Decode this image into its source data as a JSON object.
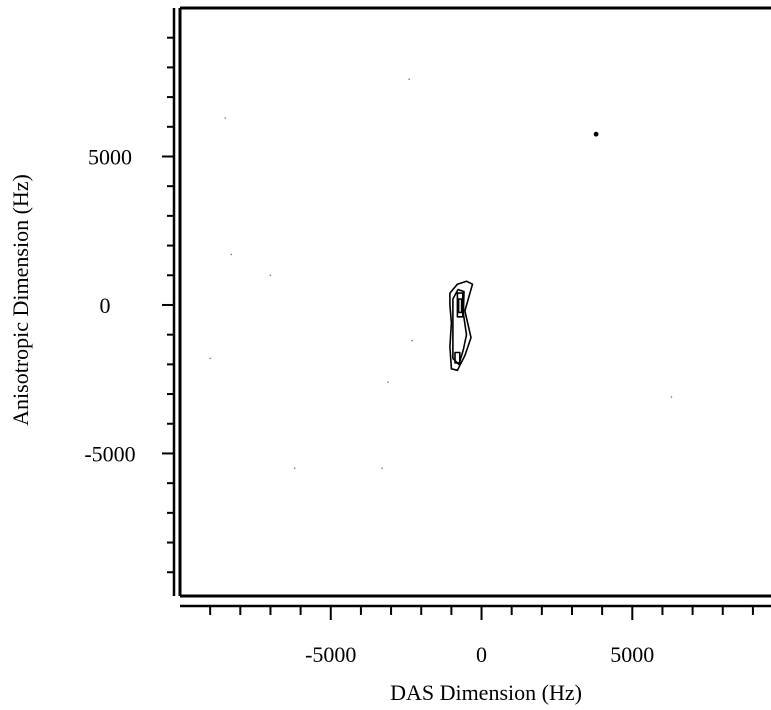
{
  "chart_data": {
    "type": "contour",
    "title": "",
    "xlabel": "DAS Dimension (Hz)",
    "ylabel": "Anisotropic Dimension (Hz)",
    "xlim": [
      -10000,
      9600
    ],
    "ylim": [
      -9800,
      10000
    ],
    "x_ticks": [
      -5000,
      0,
      5000
    ],
    "y_ticks": [
      5000,
      0,
      -5000
    ],
    "x_minor_step": 1000,
    "y_minor_step": 1000,
    "grid": false,
    "legend": "none",
    "line_color": "#000000",
    "contours": [
      {
        "level": 1,
        "points": [
          [
            -1050,
            400
          ],
          [
            -800,
            700
          ],
          [
            -500,
            800
          ],
          [
            -300,
            700
          ],
          [
            -550,
            -200
          ],
          [
            -350,
            -1100
          ],
          [
            -550,
            -1700
          ],
          [
            -800,
            -2200
          ],
          [
            -1000,
            -2150
          ],
          [
            -1050,
            -1400
          ],
          [
            -1000,
            -600
          ],
          [
            -1050,
            0
          ]
        ]
      },
      {
        "level": 2,
        "points": [
          [
            -950,
            200
          ],
          [
            -780,
            520
          ],
          [
            -580,
            450
          ],
          [
            -600,
            -300
          ],
          [
            -500,
            -1000
          ],
          [
            -600,
            -1500
          ],
          [
            -750,
            -2000
          ],
          [
            -950,
            -1800
          ],
          [
            -950,
            -1000
          ],
          [
            -950,
            -400
          ]
        ]
      },
      {
        "level": 3,
        "points": [
          [
            -800,
            400
          ],
          [
            -620,
            400
          ],
          [
            -620,
            -400
          ],
          [
            -800,
            -400
          ]
        ]
      },
      {
        "level": 3,
        "points": [
          [
            -880,
            -1600
          ],
          [
            -720,
            -1600
          ],
          [
            -720,
            -1950
          ],
          [
            -880,
            -1950
          ]
        ]
      },
      {
        "level": 4,
        "points": [
          [
            -760,
            200
          ],
          [
            -660,
            200
          ],
          [
            -660,
            -250
          ],
          [
            -760,
            -250
          ]
        ]
      }
    ],
    "noise_points": [
      [
        3800,
        5750
      ],
      [
        -2300,
        -1200
      ],
      [
        -8300,
        1700
      ],
      [
        -9000,
        -1800
      ],
      [
        -3300,
        -5500
      ],
      [
        6300,
        -3100
      ],
      [
        -8500,
        6300
      ],
      [
        -6200,
        -5500
      ],
      [
        -7000,
        1000
      ],
      [
        -2400,
        7600
      ],
      [
        -3100,
        -2600
      ]
    ]
  }
}
